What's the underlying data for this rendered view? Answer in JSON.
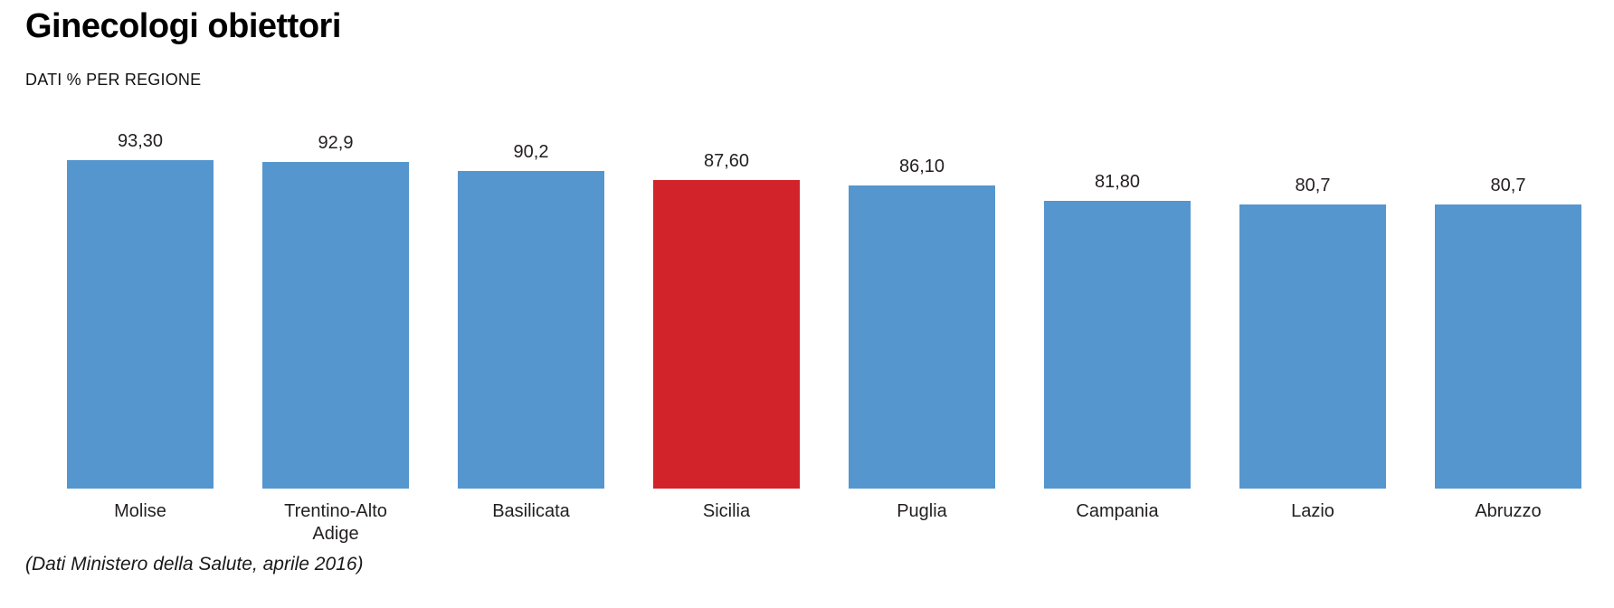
{
  "page": {
    "title": "Ginecologi obiettori",
    "subtitle": "DATI % PER REGIONE",
    "source_note": "(Dati Ministero della Salute, aprile 2016)"
  },
  "colors": {
    "bar_default": "#5596CE",
    "bar_highlight": "#D2222A",
    "text": "#231F20"
  },
  "chart_data": {
    "type": "bar",
    "title": "Ginecologi obiettori",
    "subtitle": "DATI % PER REGIONE",
    "unit": "%",
    "categories": [
      "Molise",
      "Trentino-Alto Adige",
      "Basilicata",
      "Sicilia",
      "Puglia",
      "Campania",
      "Lazio",
      "Abruzzo"
    ],
    "values": [
      93.3,
      92.9,
      90.2,
      87.6,
      86.1,
      81.8,
      80.7,
      80.7
    ],
    "value_labels": [
      "93,30",
      "92,9",
      "90,2",
      "87,60",
      "86,10",
      "81,80",
      "80,7",
      "80,7"
    ],
    "highlighted_category": "Sicilia",
    "ylim": [
      0,
      100
    ],
    "grid": false,
    "legend": false,
    "annotations": [
      "(Dati Ministero della Salute, aprile 2016)"
    ]
  }
}
